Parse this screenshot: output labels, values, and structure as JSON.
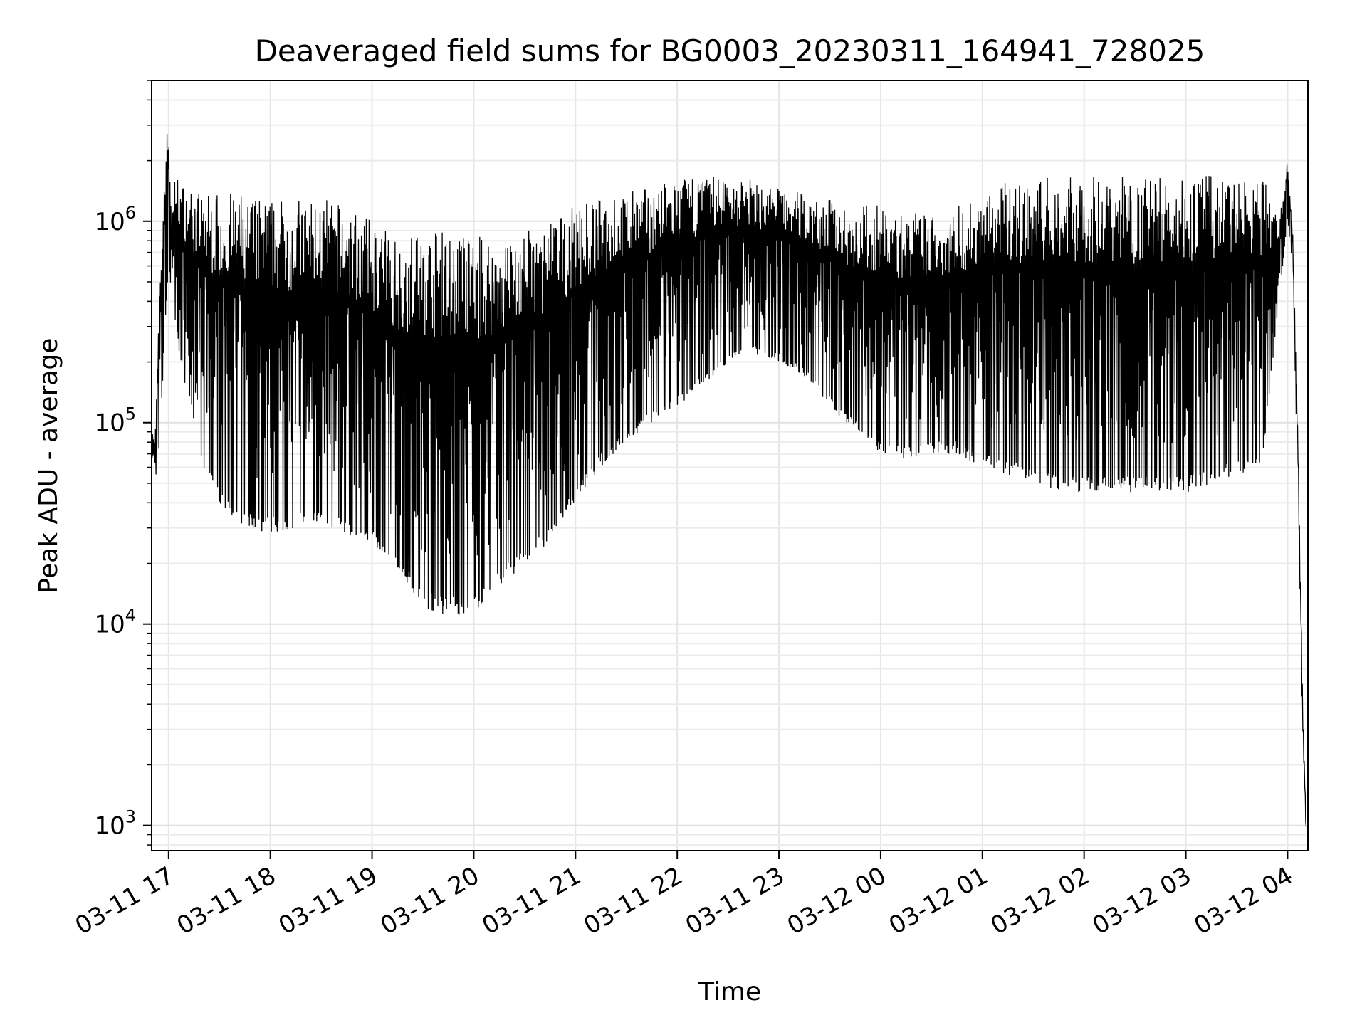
{
  "chart_data": {
    "type": "line",
    "title": "Deaveraged field sums for BG0003_20230311_164941_728025",
    "xlabel": "Time",
    "ylabel": "Peak ADU - average",
    "yscale": "log",
    "ylim": [
      750,
      5000000
    ],
    "xlim": [
      "2023-03-11 16:50",
      "2023-03-12 04:12"
    ],
    "grid": true,
    "color": "#000000",
    "x_ticks": [
      "03-11 17",
      "03-11 18",
      "03-11 19",
      "03-11 20",
      "03-11 21",
      "03-11 22",
      "03-11 23",
      "03-12 00",
      "03-12 01",
      "03-12 02",
      "03-12 03",
      "03-12 04"
    ],
    "y_ticks": [
      {
        "base": "10",
        "exp": "3",
        "value": 1000
      },
      {
        "base": "10",
        "exp": "4",
        "value": 10000
      },
      {
        "base": "10",
        "exp": "5",
        "value": 100000
      },
      {
        "base": "10",
        "exp": "6",
        "value": 1000000
      }
    ],
    "series": [
      {
        "x": [
          "2023-03-11 16:50",
          "2023-03-11 16:52",
          "2023-03-11 16:55",
          "2023-03-11 16:58",
          "2023-03-11 17:00",
          "2023-03-11 17:02",
          "2023-03-11 17:04",
          "2023-03-11 17:07",
          "2023-03-11 17:10",
          "2023-03-11 17:20",
          "2023-03-11 17:30",
          "2023-03-11 17:45",
          "2023-03-11 18:00",
          "2023-03-11 18:15",
          "2023-03-11 18:30",
          "2023-03-11 18:45",
          "2023-03-11 19:00",
          "2023-03-11 19:15",
          "2023-03-11 19:30",
          "2023-03-11 19:45",
          "2023-03-11 20:00",
          "2023-03-11 20:15",
          "2023-03-11 20:30",
          "2023-03-11 20:45",
          "2023-03-11 21:00",
          "2023-03-11 21:15",
          "2023-03-11 21:30",
          "2023-03-11 21:45",
          "2023-03-11 22:00",
          "2023-03-11 22:15",
          "2023-03-11 22:30",
          "2023-03-11 22:45",
          "2023-03-11 23:00",
          "2023-03-11 23:15",
          "2023-03-11 23:30",
          "2023-03-11 23:45",
          "2023-03-12 00:00",
          "2023-03-12 00:15",
          "2023-03-12 00:30",
          "2023-03-12 00:45",
          "2023-03-12 01:00",
          "2023-03-12 01:15",
          "2023-03-12 01:30",
          "2023-03-12 01:45",
          "2023-03-12 02:00",
          "2023-03-12 02:15",
          "2023-03-12 02:30",
          "2023-03-12 02:45",
          "2023-03-12 03:00",
          "2023-03-12 03:15",
          "2023-03-12 03:30",
          "2023-03-12 03:45",
          "2023-03-12 03:55",
          "2023-03-12 04:00",
          "2023-03-12 04:03",
          "2023-03-12 04:06",
          "2023-03-12 04:09",
          "2023-03-12 04:11"
        ],
        "upper": [
          110000,
          80000,
          600000,
          2400000,
          3300000,
          1000000,
          1800000,
          1600000,
          1500000,
          1400000,
          1400000,
          1350000,
          1300000,
          1300000,
          1300000,
          1200000,
          1000000,
          850000,
          900000,
          900000,
          850000,
          850000,
          900000,
          1000000,
          1200000,
          1300000,
          1400000,
          1500000,
          1600000,
          1700000,
          1700000,
          1600000,
          1500000,
          1400000,
          1300000,
          1200000,
          1200000,
          1100000,
          1100000,
          1200000,
          1400000,
          1600000,
          1600000,
          1700000,
          1700000,
          1700000,
          1700000,
          1700000,
          1700000,
          1700000,
          1700000,
          1700000,
          1000000,
          2200000,
          900000,
          100000,
          4000,
          1000
        ],
        "lower": [
          55000,
          50000,
          80000,
          300000,
          600000,
          400000,
          300000,
          200000,
          150000,
          60000,
          40000,
          30000,
          28000,
          30000,
          32000,
          28000,
          25000,
          18000,
          12000,
          11000,
          11000,
          15000,
          20000,
          25000,
          40000,
          60000,
          80000,
          100000,
          120000,
          150000,
          200000,
          220000,
          200000,
          170000,
          120000,
          90000,
          70000,
          65000,
          70000,
          70000,
          60000,
          55000,
          50000,
          45000,
          45000,
          45000,
          45000,
          45000,
          45000,
          50000,
          55000,
          60000,
          400000,
          1000000,
          600000,
          50000,
          2500,
          900
        ]
      }
    ]
  }
}
